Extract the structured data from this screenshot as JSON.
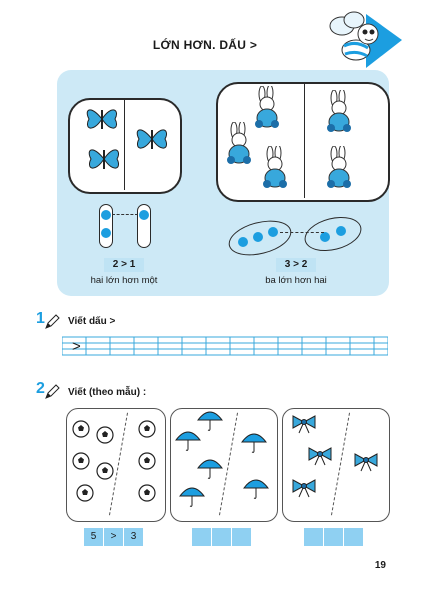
{
  "header": {
    "title": "LỚN HƠN. DẤU >"
  },
  "intro": {
    "left": {
      "equation": "2 > 1",
      "caption": "hai lớn hơn một"
    },
    "right": {
      "equation": "3 > 2",
      "caption": "ba lớn hơn hai"
    }
  },
  "exercise1": {
    "number": "1",
    "label": "Viết dấu >",
    "sample_sign": ">"
  },
  "exercise2": {
    "number": "2",
    "label": "Viết (theo mẫu) :",
    "sample_answer": [
      "5",
      ">",
      "3"
    ]
  },
  "page": {
    "number": "19"
  },
  "colors": {
    "accent": "#1c9ee0",
    "panel": "#cde9f6",
    "answer_box": "#8fd0f2"
  }
}
